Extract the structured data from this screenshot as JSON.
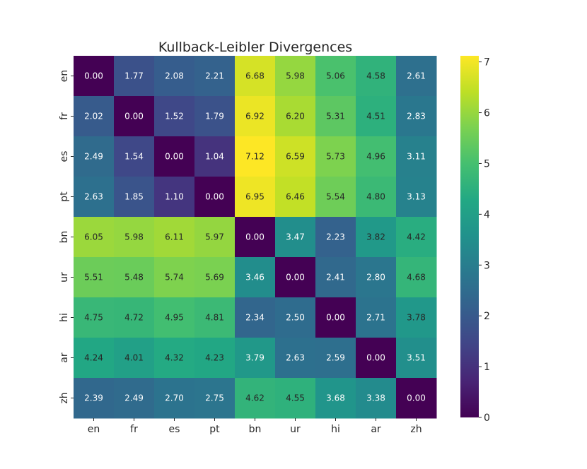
{
  "chart_data": {
    "type": "heatmap",
    "title": "Kullback-Leibler Divergences",
    "xlabel": "",
    "ylabel": "",
    "x_categories": [
      "en",
      "fr",
      "es",
      "pt",
      "bn",
      "ur",
      "hi",
      "ar",
      "zh"
    ],
    "y_categories": [
      "en",
      "fr",
      "es",
      "pt",
      "bn",
      "ur",
      "hi",
      "ar",
      "zh"
    ],
    "values": [
      [
        0.0,
        1.77,
        2.08,
        2.21,
        6.68,
        5.98,
        5.06,
        4.58,
        2.61
      ],
      [
        2.02,
        0.0,
        1.52,
        1.79,
        6.92,
        6.2,
        5.31,
        4.51,
        2.83
      ],
      [
        2.49,
        1.54,
        0.0,
        1.04,
        7.12,
        6.59,
        5.73,
        4.96,
        3.11
      ],
      [
        2.63,
        1.85,
        1.1,
        0.0,
        6.95,
        6.46,
        5.54,
        4.8,
        3.13
      ],
      [
        6.05,
        5.98,
        6.11,
        5.97,
        0.0,
        3.47,
        2.23,
        3.82,
        4.42
      ],
      [
        5.51,
        5.48,
        5.74,
        5.69,
        3.46,
        0.0,
        2.41,
        2.8,
        4.68
      ],
      [
        4.75,
        4.72,
        4.95,
        4.81,
        2.34,
        2.5,
        0.0,
        2.71,
        3.78
      ],
      [
        4.24,
        4.01,
        4.32,
        4.23,
        3.79,
        2.63,
        2.59,
        0.0,
        3.51
      ],
      [
        2.39,
        2.49,
        2.7,
        2.75,
        4.62,
        4.55,
        3.68,
        3.38,
        0.0
      ]
    ],
    "colormap": "viridis",
    "colorbar": {
      "min": 0,
      "max": 7.12,
      "ticks": [
        "0",
        "1",
        "2",
        "3",
        "4",
        "5",
        "6",
        "7"
      ]
    },
    "annotation_format": "2 decimals"
  }
}
